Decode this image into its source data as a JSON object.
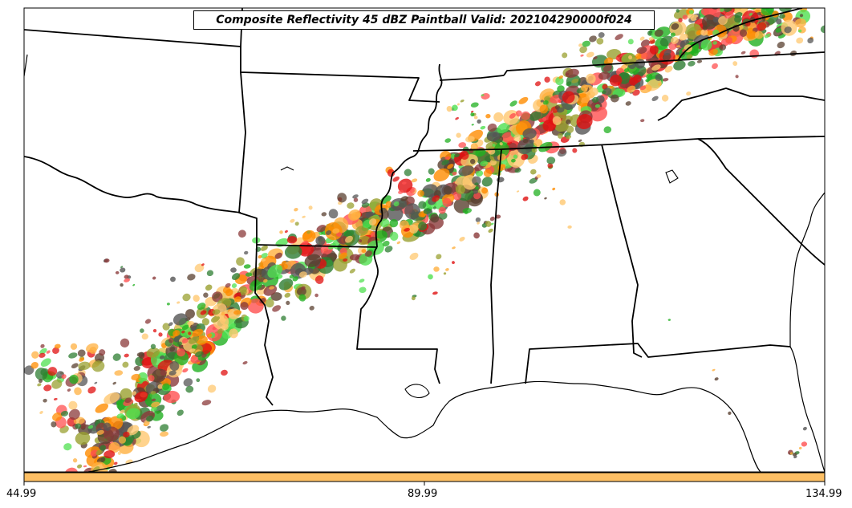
{
  "map": {
    "title": "Composite Reflectivity 45 dBZ Paintball Valid: 202104290000f024",
    "colorbar": {
      "color": "#fdbf64",
      "ticks": [
        "44.99",
        "89.99",
        "134.99"
      ]
    },
    "paint_colors": [
      "#e01010",
      "#ff5050",
      "#ff8c00",
      "#ffb040",
      "#ffc870",
      "#20b020",
      "#50e050",
      "#2e7d32",
      "#9aa030",
      "#8b3a3a",
      "#5a4030",
      "#555555"
    ],
    "background": "#ffffff",
    "border_color": "#000000"
  }
}
